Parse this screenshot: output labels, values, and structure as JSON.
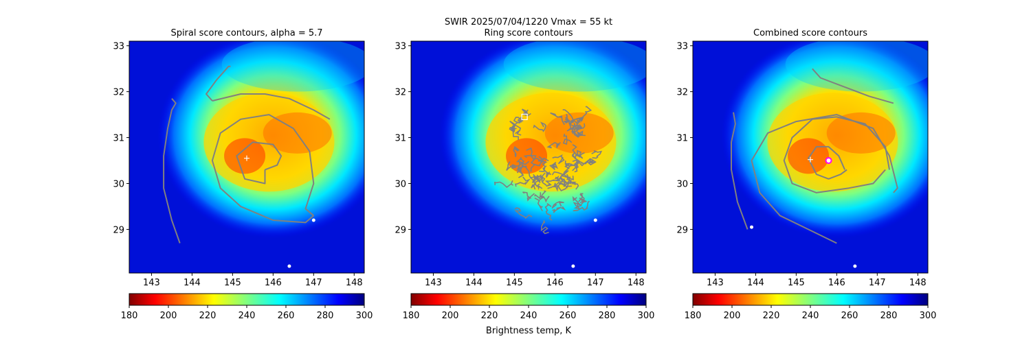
{
  "figure": {
    "suptitle_line1": "SWIR  2025/07/04/1220    Vmax = 55 kt",
    "colorbar_label": "Brightness temp, K"
  },
  "chart_data": [
    {
      "type": "heatmap",
      "title": "Spiral score contours, alpha =  5.7",
      "xlim": [
        142.45,
        148.25
      ],
      "ylim": [
        28.05,
        33.1
      ],
      "xticks": [
        143,
        144,
        145,
        146,
        147,
        148
      ],
      "yticks": [
        29,
        30,
        31,
        32,
        33
      ],
      "colorbar": {
        "min": 180,
        "max": 300,
        "ticks": [
          180,
          200,
          220,
          240,
          260,
          280,
          300
        ],
        "colormap": "jet_r"
      },
      "contours": [
        [
          [
            143.7,
            28.7
          ],
          [
            143.5,
            29.2
          ],
          [
            143.3,
            29.9
          ],
          [
            143.3,
            30.6
          ],
          [
            143.4,
            31.2
          ],
          [
            143.5,
            31.6
          ],
          [
            143.6,
            31.75
          ],
          [
            143.5,
            31.85
          ]
        ],
        [
          [
            144.5,
            31.8
          ],
          [
            145.2,
            31.95
          ],
          [
            145.8,
            31.95
          ],
          [
            146.4,
            31.85
          ],
          [
            147.0,
            31.6
          ],
          [
            147.4,
            31.4
          ]
        ],
        [
          [
            144.5,
            31.8
          ],
          [
            144.35,
            31.95
          ],
          [
            144.6,
            32.25
          ],
          [
            144.9,
            32.55
          ],
          [
            144.95,
            32.55
          ]
        ],
        [
          [
            147.0,
            29.3
          ],
          [
            146.8,
            29.45
          ],
          [
            147.0,
            30.0
          ],
          [
            146.9,
            30.7
          ],
          [
            146.5,
            31.2
          ],
          [
            145.9,
            31.5
          ],
          [
            145.2,
            31.4
          ],
          [
            144.7,
            31.1
          ],
          [
            144.5,
            30.5
          ],
          [
            144.7,
            29.9
          ],
          [
            145.2,
            29.5
          ],
          [
            146.0,
            29.2
          ],
          [
            146.8,
            29.15
          ],
          [
            147.0,
            29.3
          ]
        ],
        [
          [
            145.8,
            30.3
          ],
          [
            146.1,
            30.4
          ],
          [
            146.2,
            30.6
          ],
          [
            146.0,
            30.85
          ],
          [
            145.5,
            30.9
          ],
          [
            145.1,
            30.6
          ],
          [
            145.3,
            30.1
          ],
          [
            145.8,
            30.0
          ],
          [
            145.8,
            30.3
          ]
        ]
      ],
      "markers": [
        {
          "type": "plus",
          "x": 145.35,
          "y": 30.55,
          "color": "#ffffff"
        },
        {
          "type": "dot",
          "x": 147.0,
          "y": 29.2,
          "color": "#ffffff"
        },
        {
          "type": "dot",
          "x": 146.4,
          "y": 28.2,
          "color": "#ffffff"
        }
      ]
    },
    {
      "type": "heatmap",
      "title": "Ring score contours",
      "xlim": [
        142.45,
        148.25
      ],
      "ylim": [
        28.05,
        33.1
      ],
      "xticks": [
        143,
        144,
        145,
        146,
        147,
        148
      ],
      "yticks": [
        29,
        30,
        31,
        32,
        33
      ],
      "colorbar": {
        "min": 180,
        "max": 300,
        "ticks": [
          180,
          200,
          220,
          240,
          260,
          280,
          300
        ],
        "colormap": "jet_r"
      },
      "ring_region": {
        "cx": 145.9,
        "cy": 30.4,
        "rx": 1.15,
        "ry": 1.3
      },
      "contours": [],
      "markers": [
        {
          "type": "square",
          "x": 145.25,
          "y": 31.45,
          "color": "#ffffff"
        },
        {
          "type": "dot",
          "x": 146.45,
          "y": 28.2,
          "color": "#ffffff"
        },
        {
          "type": "dot",
          "x": 147.0,
          "y": 29.2,
          "color": "#ffffff"
        }
      ]
    },
    {
      "type": "heatmap",
      "title": "Combined score contours",
      "xlim": [
        142.45,
        148.25
      ],
      "ylim": [
        28.05,
        33.1
      ],
      "xticks": [
        143,
        144,
        145,
        146,
        147,
        148
      ],
      "yticks": [
        29,
        30,
        31,
        32,
        33
      ],
      "colorbar": {
        "min": 180,
        "max": 300,
        "ticks": [
          180,
          200,
          220,
          240,
          260,
          280,
          300
        ],
        "colormap": "jet_r"
      },
      "contours": [
        [
          [
            143.8,
            29.0
          ],
          [
            143.55,
            29.6
          ],
          [
            143.4,
            30.3
          ],
          [
            143.4,
            30.9
          ],
          [
            143.5,
            31.3
          ],
          [
            143.45,
            31.55
          ]
        ],
        [
          [
            145.4,
            32.5
          ],
          [
            145.6,
            32.3
          ],
          [
            146.2,
            32.1
          ],
          [
            146.8,
            31.9
          ],
          [
            147.4,
            31.75
          ]
        ],
        [
          [
            146.0,
            28.7
          ],
          [
            145.3,
            29.0
          ],
          [
            144.6,
            29.3
          ],
          [
            144.1,
            29.8
          ],
          [
            143.9,
            30.5
          ],
          [
            144.3,
            31.1
          ],
          [
            145.0,
            31.35
          ],
          [
            146.0,
            31.5
          ],
          [
            146.9,
            31.2
          ],
          [
            147.3,
            30.6
          ],
          [
            147.5,
            29.9
          ],
          [
            147.4,
            29.8
          ]
        ],
        [
          [
            147.3,
            30.3
          ],
          [
            147.2,
            30.8
          ],
          [
            146.7,
            31.3
          ],
          [
            146.0,
            31.45
          ],
          [
            145.4,
            31.4
          ],
          [
            144.9,
            31.0
          ],
          [
            144.7,
            30.5
          ],
          [
            144.9,
            30.0
          ],
          [
            145.5,
            29.8
          ],
          [
            146.3,
            29.9
          ],
          [
            146.9,
            30.0
          ],
          [
            147.2,
            30.3
          ]
        ],
        [
          [
            146.2,
            30.3
          ],
          [
            146.05,
            30.6
          ],
          [
            145.8,
            30.8
          ],
          [
            145.5,
            30.8
          ],
          [
            145.3,
            30.55
          ],
          [
            145.5,
            30.2
          ],
          [
            145.8,
            30.1
          ],
          [
            146.1,
            30.2
          ],
          [
            146.25,
            30.3
          ]
        ]
      ],
      "markers": [
        {
          "type": "plus",
          "x": 145.35,
          "y": 30.52,
          "color": "#ffffff"
        },
        {
          "type": "ring",
          "x": 145.8,
          "y": 30.5,
          "color": "#ff00ff"
        },
        {
          "type": "dot",
          "x": 146.45,
          "y": 28.2,
          "color": "#ffffff"
        },
        {
          "type": "dot",
          "x": 143.9,
          "y": 29.05,
          "color": "#ffffff"
        }
      ]
    }
  ],
  "colors": {
    "contour": "#808080",
    "axis": "#000000",
    "background": "#ffffff"
  }
}
